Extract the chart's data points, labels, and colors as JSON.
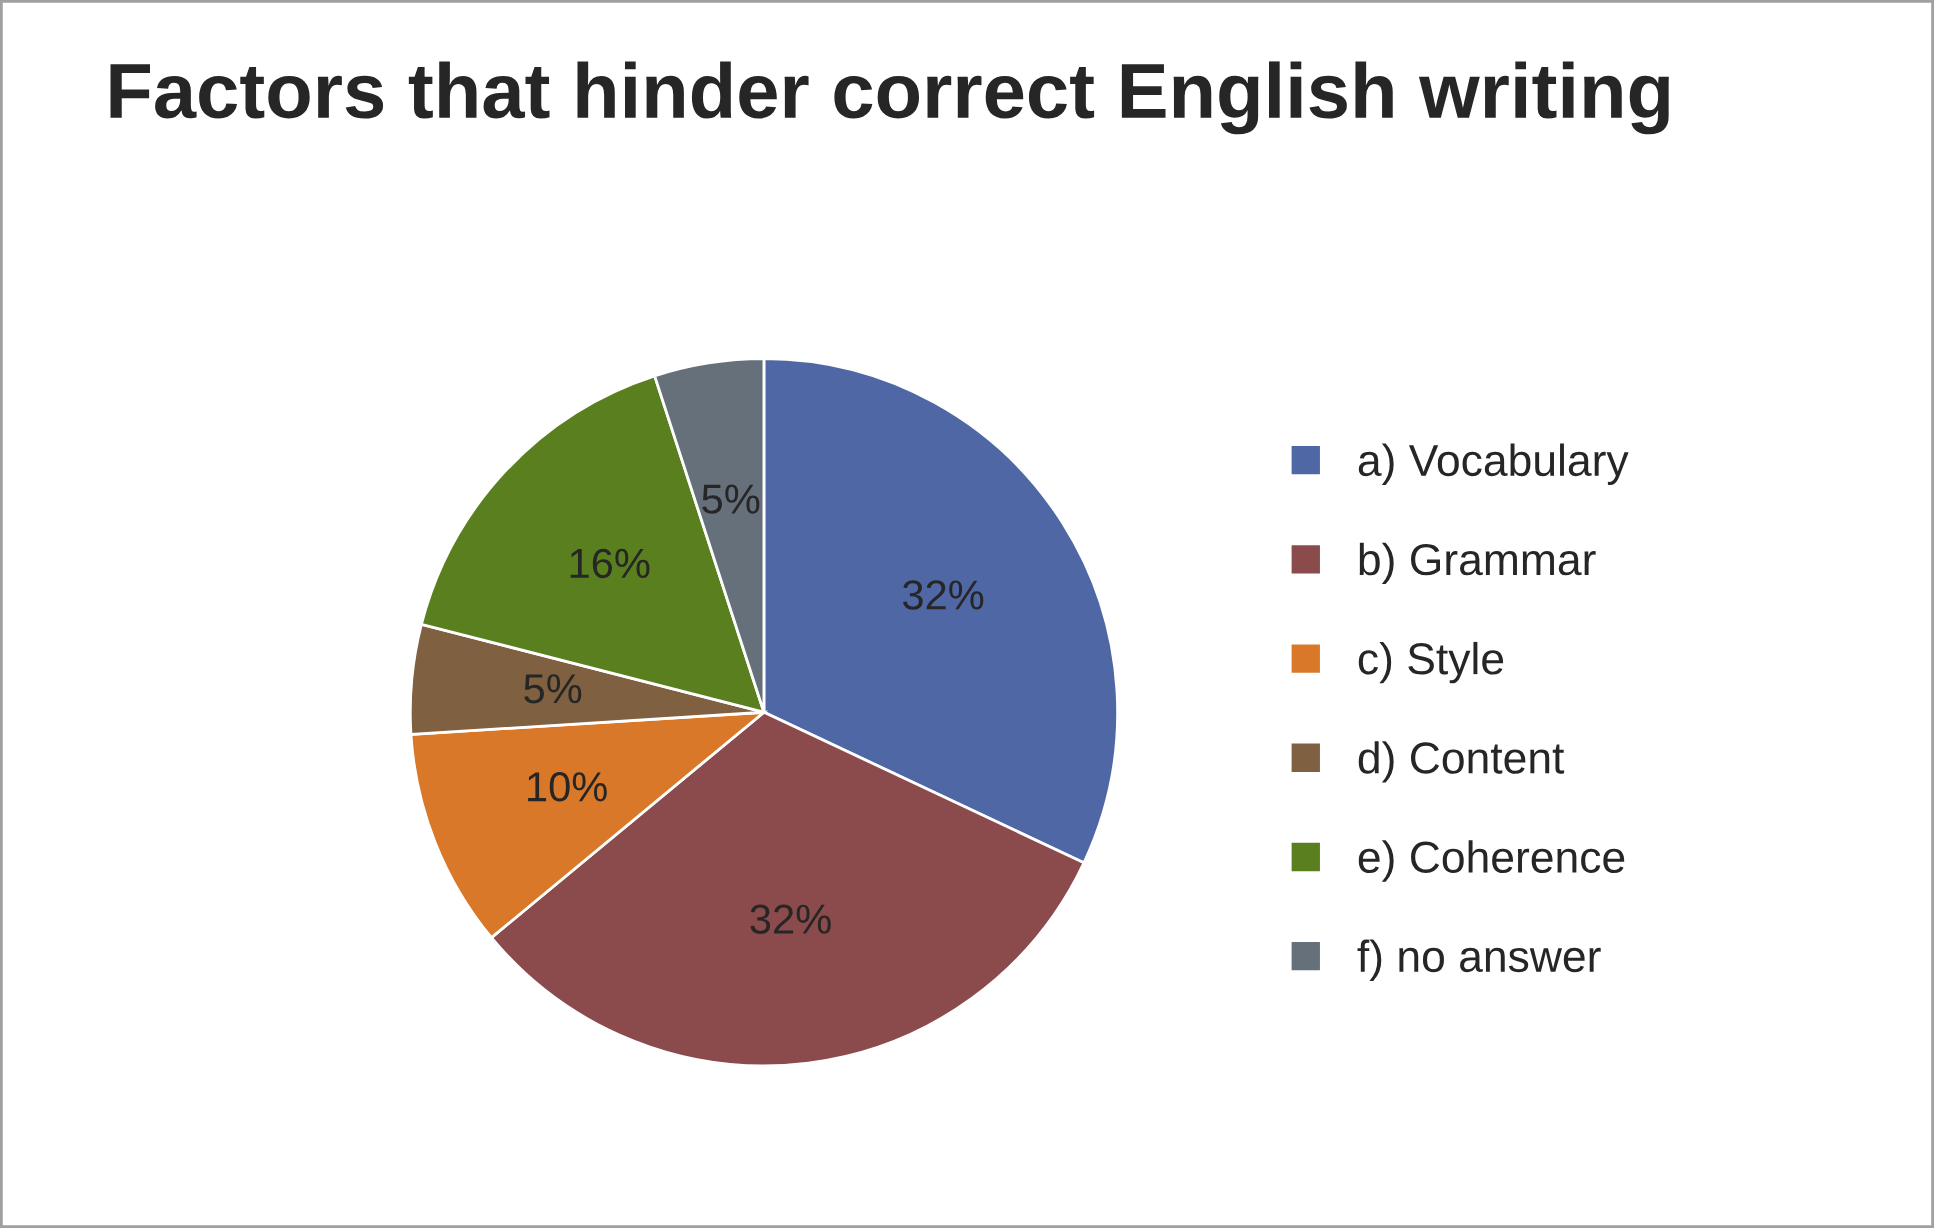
{
  "chart_data": {
    "type": "pie",
    "title": "Factors that hinder correct English writing",
    "categories": [
      "a) Vocabulary",
      "b) Grammar",
      "c) Style",
      "d) Content",
      "e) Coherence",
      "f) no answer"
    ],
    "values": [
      32,
      32,
      10,
      5,
      16,
      5
    ],
    "value_labels": [
      "32%",
      "32%",
      "10%",
      "5%",
      "16%",
      "5%"
    ],
    "colors": [
      "#4f67a4",
      "#8b4a4b",
      "#d97828",
      "#7f6040",
      "#5a7f1e",
      "#65707a"
    ],
    "legend": "right"
  }
}
